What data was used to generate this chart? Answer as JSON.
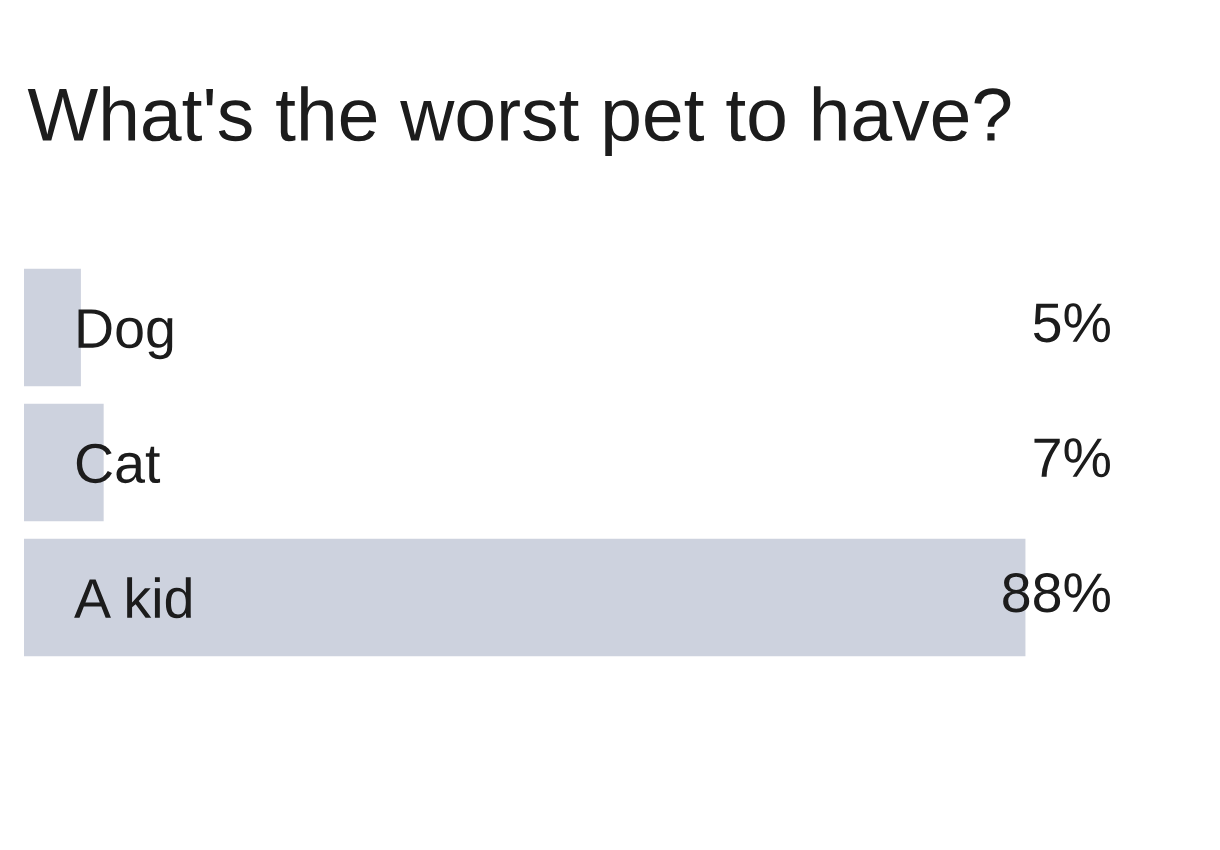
{
  "chart_data": {
    "type": "bar",
    "orientation": "horizontal",
    "title": "What's the worst pet to have?",
    "categories": [
      "Dog",
      "Cat",
      "A kid"
    ],
    "values": [
      5,
      7,
      88
    ],
    "value_labels": [
      "5%",
      "7%",
      "88%"
    ],
    "color": "#cdd2de",
    "tick_labels": "y"
  }
}
